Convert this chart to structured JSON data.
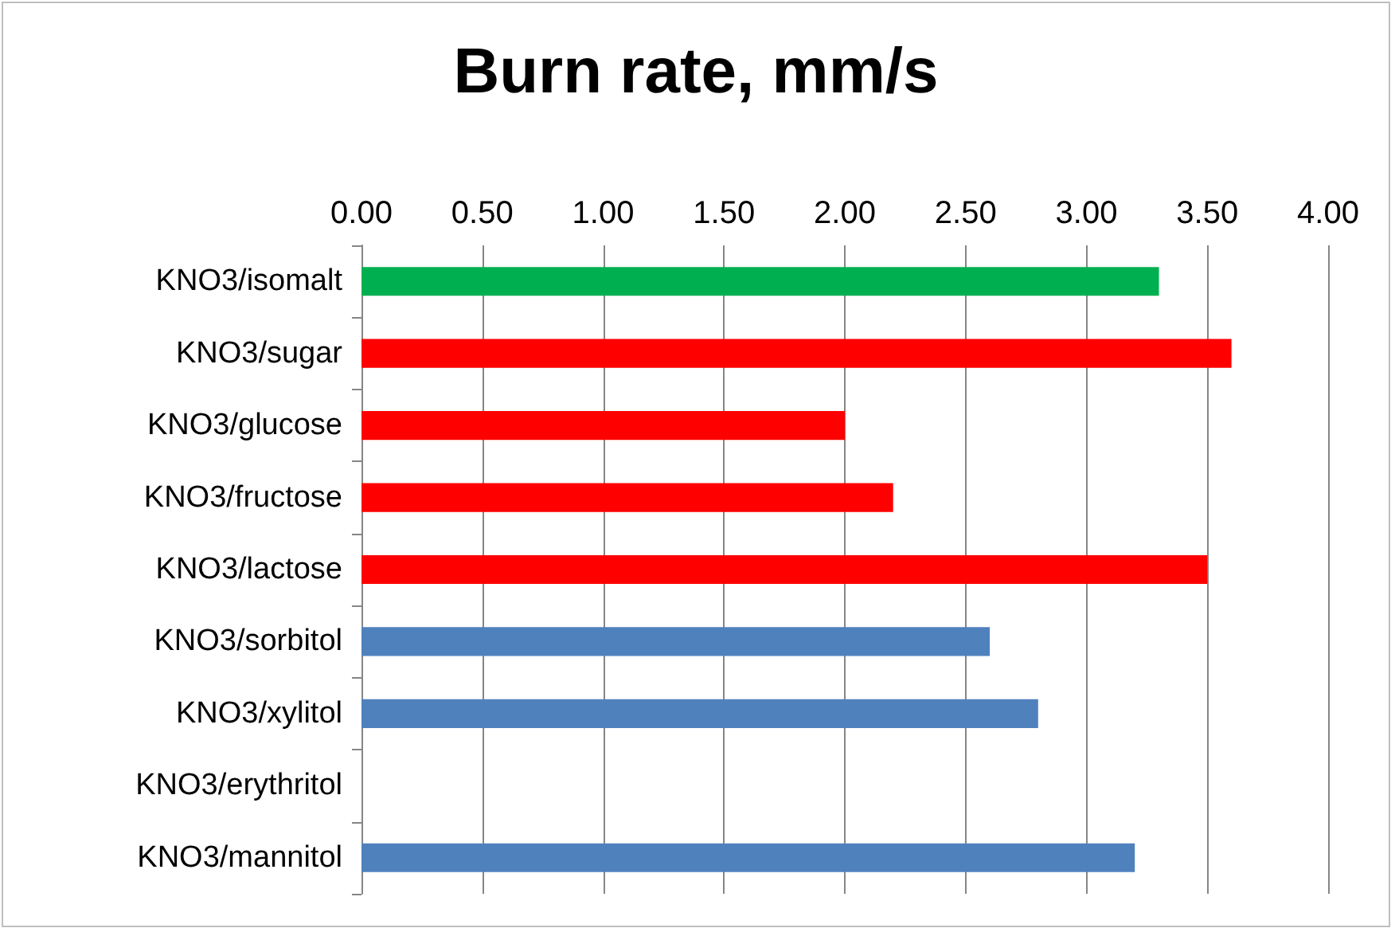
{
  "chart_data": {
    "type": "bar",
    "orientation": "horizontal",
    "title": "Burn rate, mm/s",
    "categories": [
      "KNO3/isomalt",
      "KNO3/sugar",
      "KNO3/glucose",
      "KNO3/fructose",
      "KNO3/lactose",
      "KNO3/sorbitol",
      "KNO3/xylitol",
      "KNO3/erythritol",
      "KNO3/mannitol"
    ],
    "values": [
      3.3,
      3.6,
      2.0,
      2.2,
      3.5,
      2.6,
      2.8,
      null,
      3.2
    ],
    "colors": [
      "#00b050",
      "#ff0000",
      "#ff0000",
      "#ff0000",
      "#ff0000",
      "#4f81bd",
      "#4f81bd",
      "#4f81bd",
      "#4f81bd"
    ],
    "xlim": [
      0,
      4
    ],
    "xticks": [
      {
        "value": 0,
        "label": "0.00"
      },
      {
        "value": 0.5,
        "label": "0.50"
      },
      {
        "value": 1,
        "label": "1.00"
      },
      {
        "value": 1.5,
        "label": "1.50"
      },
      {
        "value": 2,
        "label": "2.00"
      },
      {
        "value": 2.5,
        "label": "2.50"
      },
      {
        "value": 3,
        "label": "3.00"
      },
      {
        "value": 3.5,
        "label": "3.50"
      },
      {
        "value": 4,
        "label": "4.00"
      }
    ],
    "grid": "x"
  }
}
